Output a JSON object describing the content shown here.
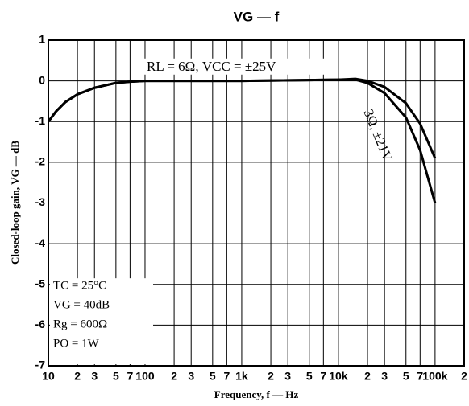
{
  "chart_data": {
    "type": "line",
    "title": "VG — f",
    "xlabel": "Frequency, f — Hz",
    "ylabel": "Closed-loop gain, VG — dB",
    "xscale": "log",
    "grid": true,
    "x": [
      10,
      12,
      15,
      20,
      30,
      50,
      70,
      100,
      1000,
      10000,
      15000,
      20000,
      30000,
      50000,
      70000,
      100000
    ],
    "series": [
      {
        "name": "RL = 6Ω, VCC = ±25V",
        "color": "#000000",
        "values": [
          -1.0,
          -0.75,
          -0.52,
          -0.33,
          -0.17,
          -0.05,
          -0.02,
          0,
          0,
          0.03,
          0.05,
          0,
          -0.15,
          -0.55,
          -1.05,
          -1.9
        ]
      },
      {
        "name": "3Ω, ±21V",
        "color": "#000000",
        "values": [
          -1.0,
          -0.75,
          -0.52,
          -0.33,
          -0.17,
          -0.05,
          -0.02,
          0,
          0,
          0.03,
          0.03,
          -0.05,
          -0.3,
          -0.9,
          -1.7,
          -3.0
        ]
      }
    ],
    "xlim": [
      10,
      200000
    ],
    "xticks": [
      10,
      {
        "value": 20,
        "label": "2"
      },
      {
        "value": 30,
        "label": "3"
      },
      {
        "value": 50,
        "label": "5"
      },
      {
        "value": 70,
        "label": "7"
      },
      100,
      {
        "value": 200,
        "label": "2"
      },
      {
        "value": 300,
        "label": "3"
      },
      {
        "value": 500,
        "label": "5"
      },
      {
        "value": 700,
        "label": "7"
      },
      {
        "value": 1000,
        "label": "1k"
      },
      {
        "value": 2000,
        "label": "2"
      },
      {
        "value": 3000,
        "label": "3"
      },
      {
        "value": 5000,
        "label": "5"
      },
      {
        "value": 7000,
        "label": "7"
      },
      {
        "value": 10000,
        "label": "10k"
      },
      {
        "value": 20000,
        "label": "2"
      },
      {
        "value": 30000,
        "label": "3"
      },
      {
        "value": 50000,
        "label": "5"
      },
      {
        "value": 70000,
        "label": "7"
      },
      {
        "value": 100000,
        "label": "100k"
      },
      {
        "value": 200000,
        "label": "2"
      }
    ],
    "ylim": [
      -7,
      1
    ],
    "yticks": [
      -7,
      -6,
      -5,
      -4,
      -3,
      -2,
      -1,
      0,
      1
    ],
    "conditions": [
      "TC = 25°C",
      "VG = 40dB",
      "Rg = 600Ω",
      "PO = 1W"
    ]
  }
}
